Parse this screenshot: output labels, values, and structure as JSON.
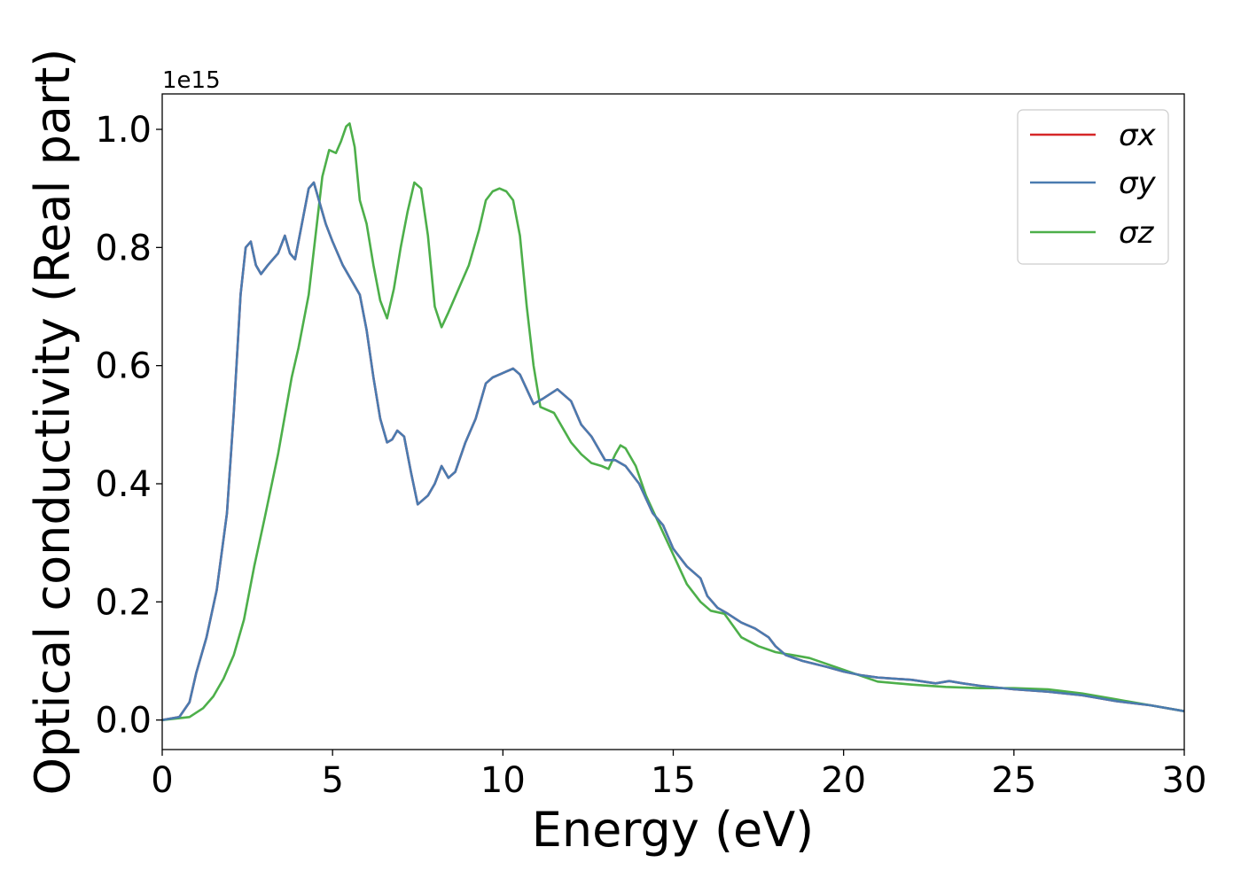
{
  "chart_data": {
    "type": "line",
    "title": "",
    "xlabel": "Energy (eV)",
    "ylabel": "Optical conductivity (Real part)",
    "y_offset_label": "1e15",
    "xlim": [
      0,
      30
    ],
    "ylim": [
      -0.05,
      1.06
    ],
    "x_ticks": [
      0,
      5,
      10,
      15,
      20,
      25,
      30
    ],
    "x_tick_labels": [
      "0",
      "5",
      "10",
      "15",
      "20",
      "25",
      "30"
    ],
    "y_ticks": [
      0.0,
      0.2,
      0.4,
      0.6,
      0.8,
      1.0
    ],
    "y_tick_labels": [
      "0.0",
      "0.2",
      "0.4",
      "0.6",
      "0.8",
      "1.0"
    ],
    "grid": false,
    "legend_position": "top-right",
    "series": [
      {
        "name": "σx",
        "color": "#d62728",
        "x": [
          0,
          0.5,
          0.8,
          1.0,
          1.3,
          1.6,
          1.9,
          2.1,
          2.3,
          2.45,
          2.6,
          2.75,
          2.9,
          3.1,
          3.4,
          3.6,
          3.75,
          3.9,
          4.1,
          4.3,
          4.45,
          4.6,
          4.8,
          5.0,
          5.3,
          5.6,
          5.8,
          6.0,
          6.2,
          6.4,
          6.6,
          6.75,
          6.9,
          7.1,
          7.3,
          7.5,
          7.8,
          8.0,
          8.2,
          8.4,
          8.6,
          8.9,
          9.2,
          9.5,
          9.7,
          9.9,
          10.1,
          10.3,
          10.5,
          10.7,
          10.9,
          11.2,
          11.6,
          12.0,
          12.3,
          12.6,
          12.8,
          13.0,
          13.3,
          13.6,
          14.0,
          14.4,
          14.7,
          15.0,
          15.4,
          15.8,
          16.0,
          16.3,
          16.6,
          17.0,
          17.4,
          17.8,
          18.0,
          18.3,
          18.8,
          19.5,
          20.0,
          20.5,
          21.0,
          22.0,
          22.7,
          23.1,
          23.5,
          24.0,
          25.0,
          26.0,
          27.0,
          28.0,
          29.0,
          30.0
        ],
        "values": [
          0.0,
          0.005,
          0.03,
          0.08,
          0.14,
          0.22,
          0.35,
          0.52,
          0.72,
          0.8,
          0.81,
          0.77,
          0.755,
          0.77,
          0.79,
          0.82,
          0.79,
          0.78,
          0.84,
          0.9,
          0.91,
          0.88,
          0.84,
          0.81,
          0.77,
          0.74,
          0.72,
          0.66,
          0.58,
          0.51,
          0.47,
          0.475,
          0.49,
          0.48,
          0.42,
          0.365,
          0.38,
          0.4,
          0.43,
          0.41,
          0.42,
          0.47,
          0.51,
          0.57,
          0.58,
          0.585,
          0.59,
          0.595,
          0.585,
          0.56,
          0.535,
          0.545,
          0.56,
          0.54,
          0.5,
          0.48,
          0.46,
          0.44,
          0.44,
          0.43,
          0.4,
          0.35,
          0.33,
          0.29,
          0.26,
          0.24,
          0.21,
          0.19,
          0.18,
          0.165,
          0.155,
          0.14,
          0.125,
          0.11,
          0.1,
          0.09,
          0.082,
          0.076,
          0.072,
          0.068,
          0.062,
          0.066,
          0.062,
          0.058,
          0.052,
          0.048,
          0.042,
          0.032,
          0.025,
          0.015
        ]
      },
      {
        "name": "σy",
        "color": "#4a7bb0",
        "x": [
          0,
          0.5,
          0.8,
          1.0,
          1.3,
          1.6,
          1.9,
          2.1,
          2.3,
          2.45,
          2.6,
          2.75,
          2.9,
          3.1,
          3.4,
          3.6,
          3.75,
          3.9,
          4.1,
          4.3,
          4.45,
          4.6,
          4.8,
          5.0,
          5.3,
          5.6,
          5.8,
          6.0,
          6.2,
          6.4,
          6.6,
          6.75,
          6.9,
          7.1,
          7.3,
          7.5,
          7.8,
          8.0,
          8.2,
          8.4,
          8.6,
          8.9,
          9.2,
          9.5,
          9.7,
          9.9,
          10.1,
          10.3,
          10.5,
          10.7,
          10.9,
          11.2,
          11.6,
          12.0,
          12.3,
          12.6,
          12.8,
          13.0,
          13.3,
          13.6,
          14.0,
          14.4,
          14.7,
          15.0,
          15.4,
          15.8,
          16.0,
          16.3,
          16.6,
          17.0,
          17.4,
          17.8,
          18.0,
          18.3,
          18.8,
          19.5,
          20.0,
          20.5,
          21.0,
          22.0,
          22.7,
          23.1,
          23.5,
          24.0,
          25.0,
          26.0,
          27.0,
          28.0,
          29.0,
          30.0
        ],
        "values": [
          0.0,
          0.005,
          0.03,
          0.08,
          0.14,
          0.22,
          0.35,
          0.52,
          0.72,
          0.8,
          0.81,
          0.77,
          0.755,
          0.77,
          0.79,
          0.82,
          0.79,
          0.78,
          0.84,
          0.9,
          0.91,
          0.88,
          0.84,
          0.81,
          0.77,
          0.74,
          0.72,
          0.66,
          0.58,
          0.51,
          0.47,
          0.475,
          0.49,
          0.48,
          0.42,
          0.365,
          0.38,
          0.4,
          0.43,
          0.41,
          0.42,
          0.47,
          0.51,
          0.57,
          0.58,
          0.585,
          0.59,
          0.595,
          0.585,
          0.56,
          0.535,
          0.545,
          0.56,
          0.54,
          0.5,
          0.48,
          0.46,
          0.44,
          0.44,
          0.43,
          0.4,
          0.35,
          0.33,
          0.29,
          0.26,
          0.24,
          0.21,
          0.19,
          0.18,
          0.165,
          0.155,
          0.14,
          0.125,
          0.11,
          0.1,
          0.09,
          0.082,
          0.076,
          0.072,
          0.068,
          0.062,
          0.066,
          0.062,
          0.058,
          0.052,
          0.048,
          0.042,
          0.032,
          0.025,
          0.015
        ]
      },
      {
        "name": "σz",
        "color": "#4daf4a",
        "x": [
          0,
          0.8,
          1.2,
          1.5,
          1.8,
          2.1,
          2.4,
          2.7,
          3.0,
          3.4,
          3.8,
          4.0,
          4.3,
          4.5,
          4.7,
          4.9,
          5.1,
          5.25,
          5.4,
          5.5,
          5.65,
          5.8,
          6.0,
          6.2,
          6.4,
          6.6,
          6.8,
          7.0,
          7.2,
          7.4,
          7.6,
          7.8,
          8.0,
          8.2,
          8.4,
          8.7,
          9.0,
          9.3,
          9.5,
          9.7,
          9.9,
          10.1,
          10.3,
          10.5,
          10.7,
          10.9,
          11.1,
          11.5,
          12.0,
          12.3,
          12.6,
          12.9,
          13.1,
          13.3,
          13.45,
          13.6,
          13.9,
          14.2,
          14.6,
          15.0,
          15.4,
          15.8,
          16.1,
          16.5,
          17.0,
          17.5,
          18.0,
          18.5,
          19.0,
          19.5,
          20.0,
          20.5,
          21.0,
          22.0,
          23.0,
          24.0,
          25.0,
          26.0,
          27.0,
          28.0,
          29.0,
          30.0
        ],
        "values": [
          0.0,
          0.005,
          0.02,
          0.04,
          0.07,
          0.11,
          0.17,
          0.26,
          0.34,
          0.45,
          0.58,
          0.63,
          0.72,
          0.82,
          0.92,
          0.965,
          0.96,
          0.98,
          1.005,
          1.01,
          0.97,
          0.88,
          0.84,
          0.77,
          0.71,
          0.68,
          0.73,
          0.8,
          0.86,
          0.91,
          0.9,
          0.82,
          0.7,
          0.665,
          0.69,
          0.73,
          0.77,
          0.83,
          0.88,
          0.895,
          0.9,
          0.895,
          0.88,
          0.82,
          0.7,
          0.6,
          0.53,
          0.52,
          0.47,
          0.45,
          0.435,
          0.43,
          0.425,
          0.45,
          0.465,
          0.46,
          0.43,
          0.38,
          0.33,
          0.28,
          0.23,
          0.2,
          0.185,
          0.18,
          0.14,
          0.125,
          0.115,
          0.11,
          0.105,
          0.095,
          0.085,
          0.075,
          0.065,
          0.06,
          0.056,
          0.054,
          0.054,
          0.052,
          0.045,
          0.035,
          0.025,
          0.015
        ]
      }
    ]
  }
}
